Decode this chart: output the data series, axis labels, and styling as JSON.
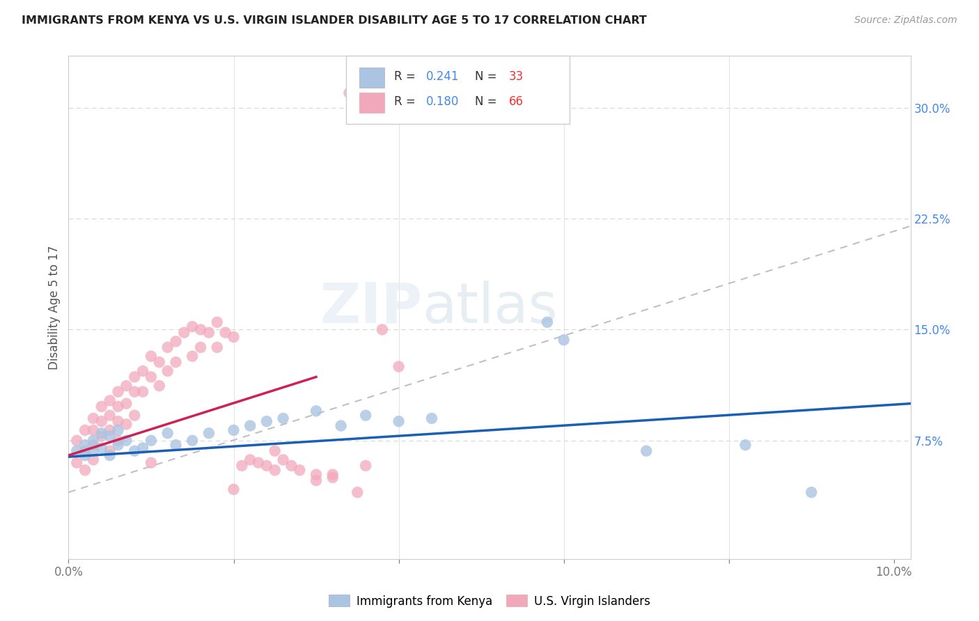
{
  "title": "IMMIGRANTS FROM KENYA VS U.S. VIRGIN ISLANDER DISABILITY AGE 5 TO 17 CORRELATION CHART",
  "source": "Source: ZipAtlas.com",
  "ylabel": "Disability Age 5 to 17",
  "xlim": [
    0.0,
    0.102
  ],
  "ylim": [
    -0.005,
    0.335
  ],
  "xticks": [
    0.0,
    0.02,
    0.04,
    0.06,
    0.08,
    0.1
  ],
  "xticklabels": [
    "0.0%",
    "",
    "",
    "",
    "",
    "10.0%"
  ],
  "yticks_right": [
    0.075,
    0.15,
    0.225,
    0.3
  ],
  "yticklabels_right": [
    "7.5%",
    "15.0%",
    "22.5%",
    "30.0%"
  ],
  "watermark": "ZIPatlas",
  "blue_color": "#aac4e2",
  "pink_color": "#f2a8bb",
  "blue_line_color": "#1a5fb4",
  "pink_line_color": "#cc2255",
  "grid_color": "#d8d8d8",
  "border_color": "#cccccc",
  "blue_scatter_x": [
    0.001,
    0.002,
    0.002,
    0.003,
    0.003,
    0.004,
    0.004,
    0.005,
    0.005,
    0.006,
    0.006,
    0.007,
    0.008,
    0.009,
    0.01,
    0.012,
    0.013,
    0.015,
    0.017,
    0.02,
    0.022,
    0.024,
    0.026,
    0.03,
    0.033,
    0.036,
    0.04,
    0.044,
    0.058,
    0.06,
    0.07,
    0.082,
    0.09
  ],
  "blue_scatter_y": [
    0.068,
    0.072,
    0.065,
    0.075,
    0.068,
    0.08,
    0.07,
    0.078,
    0.065,
    0.082,
    0.072,
    0.075,
    0.068,
    0.07,
    0.075,
    0.08,
    0.072,
    0.075,
    0.08,
    0.082,
    0.085,
    0.088,
    0.09,
    0.095,
    0.085,
    0.092,
    0.088,
    0.09,
    0.155,
    0.143,
    0.068,
    0.072,
    0.04
  ],
  "pink_scatter_x": [
    0.001,
    0.001,
    0.002,
    0.002,
    0.002,
    0.003,
    0.003,
    0.003,
    0.003,
    0.004,
    0.004,
    0.004,
    0.005,
    0.005,
    0.005,
    0.005,
    0.006,
    0.006,
    0.006,
    0.006,
    0.007,
    0.007,
    0.007,
    0.008,
    0.008,
    0.008,
    0.009,
    0.009,
    0.01,
    0.01,
    0.011,
    0.011,
    0.012,
    0.012,
    0.013,
    0.013,
    0.014,
    0.015,
    0.015,
    0.016,
    0.016,
    0.017,
    0.018,
    0.018,
    0.019,
    0.02,
    0.021,
    0.022,
    0.023,
    0.024,
    0.025,
    0.026,
    0.027,
    0.028,
    0.03,
    0.032,
    0.034,
    0.036,
    0.038,
    0.04,
    0.01,
    0.02,
    0.025,
    0.03,
    0.032,
    0.035
  ],
  "pink_scatter_y": [
    0.075,
    0.06,
    0.082,
    0.068,
    0.055,
    0.09,
    0.082,
    0.072,
    0.062,
    0.098,
    0.088,
    0.078,
    0.102,
    0.092,
    0.082,
    0.068,
    0.108,
    0.098,
    0.088,
    0.075,
    0.112,
    0.1,
    0.086,
    0.118,
    0.108,
    0.092,
    0.122,
    0.108,
    0.132,
    0.118,
    0.128,
    0.112,
    0.138,
    0.122,
    0.142,
    0.128,
    0.148,
    0.152,
    0.132,
    0.15,
    0.138,
    0.148,
    0.155,
    0.138,
    0.148,
    0.145,
    0.058,
    0.062,
    0.06,
    0.058,
    0.068,
    0.062,
    0.058,
    0.055,
    0.052,
    0.05,
    0.31,
    0.058,
    0.15,
    0.125,
    0.06,
    0.042,
    0.055,
    0.048,
    0.052,
    0.04
  ],
  "blue_line_x0": 0.0,
  "blue_line_x1": 0.102,
  "blue_line_y0": 0.064,
  "blue_line_y1": 0.1,
  "pink_line_x0": 0.0,
  "pink_line_x1": 0.03,
  "pink_line_y0": 0.065,
  "pink_line_y1": 0.118,
  "dash_line_x0": 0.0,
  "dash_line_x1": 0.102,
  "dash_line_y0": 0.04,
  "dash_line_y1": 0.22
}
